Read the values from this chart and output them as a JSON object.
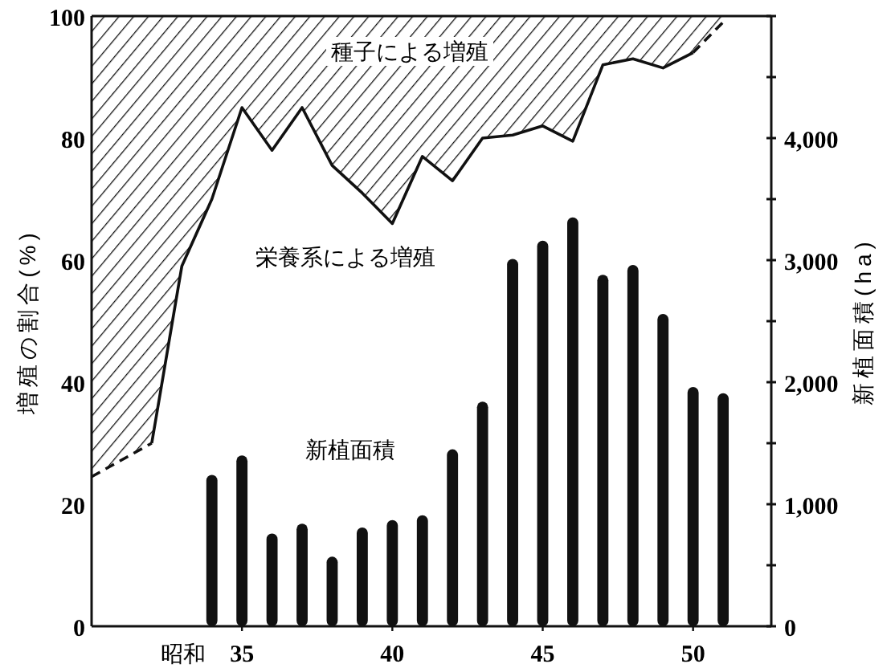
{
  "chart_data": {
    "type": "bar",
    "xlabel": "昭和",
    "ylabel": "増殖の割合(%)",
    "y2label": "新植面積(ha)",
    "xlim": [
      30,
      52.6
    ],
    "xticks": [
      35,
      40,
      45,
      50
    ],
    "ylim": [
      0,
      100
    ],
    "yticks": [
      0,
      20,
      40,
      60,
      80,
      100
    ],
    "y2lim": [
      0,
      5000
    ],
    "y2ticks": [
      0,
      {
        "value": 500,
        "label": null
      },
      {
        "value": 1000,
        "label": "1,000"
      },
      {
        "value": 1500,
        "label": null
      },
      {
        "value": 2000,
        "label": "2,000"
      },
      {
        "value": 2500,
        "label": null
      },
      {
        "value": 3000,
        "label": "3,000"
      },
      {
        "value": 3500,
        "label": null
      },
      {
        "value": 4000,
        "label": "4,000"
      },
      {
        "value": 4500,
        "label": null
      },
      {
        "value": 5000,
        "label": null
      }
    ],
    "annotations": [
      "種子による増殖",
      "栄養系による増殖",
      "新植面積"
    ],
    "series": [
      {
        "type": "line",
        "line_style": "dashed",
        "color": "#111111",
        "x": [
          30,
          32
        ],
        "values": [
          24.5,
          30
        ],
        "lower": [
          24.5,
          30
        ],
        "upper": [
          100,
          100
        ]
      },
      {
        "type": "line",
        "line_style": "solid",
        "color": "#111111",
        "x": [
          32,
          33,
          34,
          35,
          36,
          37,
          38,
          39,
          40,
          41,
          42,
          43,
          44,
          45,
          46,
          47,
          48,
          49,
          50
        ],
        "values": [
          30,
          59,
          70,
          85,
          78,
          85,
          75.5,
          71,
          66,
          77,
          73,
          80,
          80.5,
          82,
          79.5,
          92,
          93,
          91.5,
          94
        ],
        "lower": [
          30,
          59,
          70,
          85,
          78,
          85,
          75.5,
          71,
          66,
          77,
          73,
          80,
          80.5,
          82,
          79.5,
          92,
          93,
          91.5,
          94
        ],
        "upper": [
          100,
          100,
          100,
          100,
          100,
          100,
          100,
          100,
          100,
          100,
          100,
          100,
          100,
          100,
          100,
          100,
          100,
          100,
          100
        ]
      },
      {
        "type": "line",
        "line_style": "dashed",
        "color": "#111111",
        "x": [
          50,
          51
        ],
        "values": [
          94,
          99
        ],
        "lower": [
          94,
          99
        ],
        "upper": [
          100,
          100
        ]
      },
      {
        "axis": "y2",
        "color": "#111111",
        "x": [
          34,
          35,
          36,
          37,
          38,
          39,
          40,
          41,
          42,
          43,
          44,
          45,
          46,
          47,
          48,
          49,
          50,
          51
        ],
        "values": [
          1240,
          1400,
          760,
          840,
          570,
          810,
          870,
          910,
          1450,
          1840,
          3010,
          3160,
          3350,
          2880,
          2960,
          2560,
          1960,
          1910
        ]
      }
    ]
  }
}
